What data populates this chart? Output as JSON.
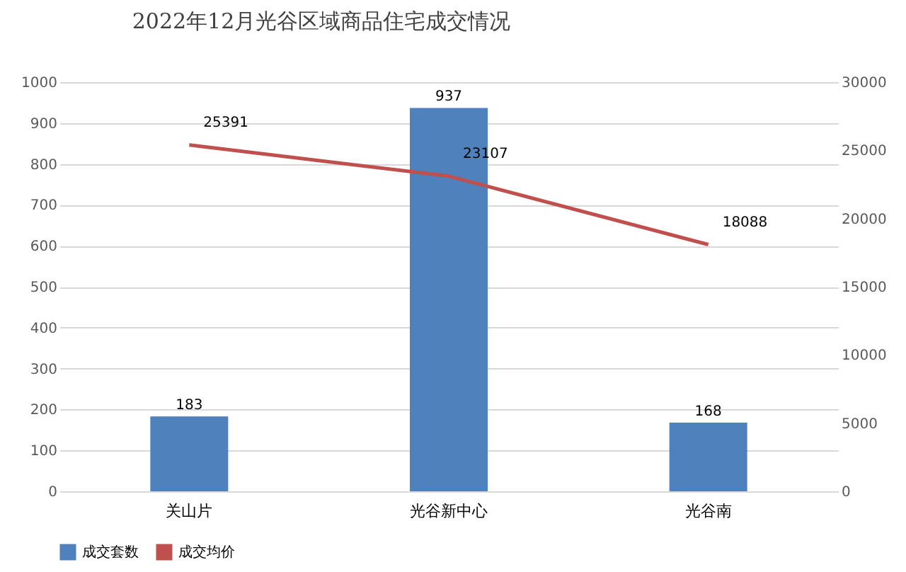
{
  "chart_data": {
    "type": "bar",
    "title": "2022年12月光谷区域商品住宅成交情况",
    "categories": [
      "关山片",
      "光谷新中心",
      "光谷南"
    ],
    "series": [
      {
        "name": "成交套数",
        "color": "#4f81bd",
        "values": [
          183,
          937,
          168
        ]
      },
      {
        "name": "成交均价",
        "type": "line",
        "axis": "y2",
        "color": "#c0504d",
        "values": [
          25391,
          23107,
          18088
        ]
      }
    ],
    "ylim": [
      0,
      1000
    ],
    "yticks": [
      0,
      100,
      200,
      300,
      400,
      500,
      600,
      700,
      800,
      900,
      1000
    ],
    "y2lim": [
      0,
      30000
    ],
    "y2ticks": [
      0,
      5000,
      10000,
      15000,
      20000,
      25000,
      30000
    ],
    "data_labels": true,
    "grid": "y",
    "legend": "bottom",
    "marker": "none"
  }
}
